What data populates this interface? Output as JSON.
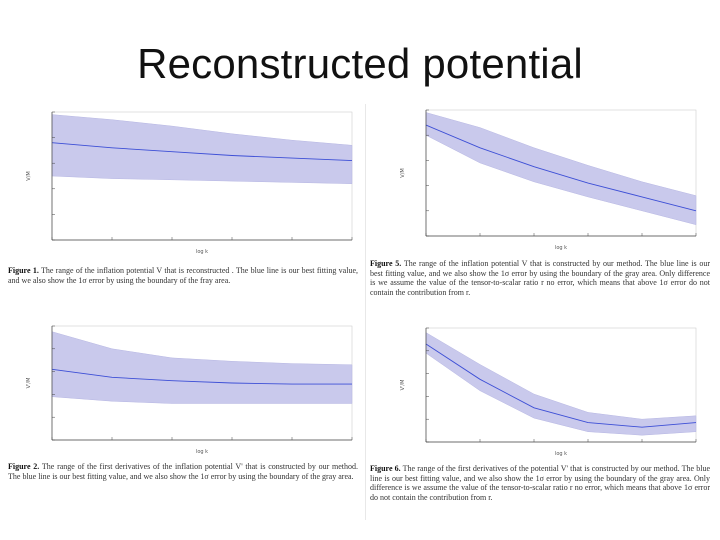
{
  "title": "Reconstructed potential",
  "colors": {
    "band": "#c9c9ec",
    "line": "#3d4fd6",
    "axis": "#444444",
    "grid": "#cfcfcf"
  },
  "chart_data": [
    {
      "type": "area",
      "xscale": "log",
      "ylim": [
        0,
        1
      ],
      "x": [
        1e-05,
        0.0001,
        0.001,
        0.01,
        0.1,
        1
      ],
      "center": [
        0.76,
        0.72,
        0.69,
        0.66,
        0.64,
        0.62
      ],
      "upper": [
        0.98,
        0.94,
        0.89,
        0.83,
        0.78,
        0.74
      ],
      "lower": [
        0.5,
        0.48,
        0.47,
        0.46,
        0.45,
        0.44
      ],
      "caption_label": "Figure 1.",
      "caption_text": "The range of the inflation potential V that is reconstructed . The blue line is our best fitting value, and we also show the 1σ error by using the boundary of the fray area.",
      "ylabel": "V/M",
      "xlabel": "log k"
    },
    {
      "type": "area",
      "xscale": "log",
      "ylim": [
        0,
        1
      ],
      "x": [
        1e-05,
        0.0001,
        0.001,
        0.01,
        0.1,
        1
      ],
      "center": [
        0.62,
        0.55,
        0.52,
        0.5,
        0.49,
        0.49
      ],
      "upper": [
        0.95,
        0.8,
        0.72,
        0.69,
        0.67,
        0.66
      ],
      "lower": [
        0.38,
        0.34,
        0.32,
        0.32,
        0.32,
        0.32
      ],
      "caption_label": "Figure 2.",
      "caption_text": "The range of the first derivatives of the inflation potential V' that is constructed by our method. The blue line is our best fitting value, and we also show the 1σ error by using the boundary of the gray area.",
      "ylabel": "V'/M",
      "xlabel": "log k"
    },
    {
      "type": "area",
      "xscale": "log",
      "ylim": [
        0,
        1
      ],
      "x": [
        1e-05,
        0.0001,
        0.001,
        0.01,
        0.1,
        1
      ],
      "center": [
        0.88,
        0.7,
        0.55,
        0.42,
        0.31,
        0.2
      ],
      "upper": [
        0.98,
        0.86,
        0.7,
        0.56,
        0.43,
        0.32
      ],
      "lower": [
        0.8,
        0.58,
        0.43,
        0.31,
        0.2,
        0.09
      ],
      "caption_label": "Figure 5.",
      "caption_text": "The range of the inflation potential V that is constructed by our method. The blue line is our best fitting value, and we also show the 1σ error by using the boundary of the gray area. Only difference is we assume the value of the tensor-to-scalar ratio r no error, which means that above 1σ error do not contain the contribution from r.",
      "ylabel": "V/M",
      "xlabel": "log k"
    },
    {
      "type": "area",
      "xscale": "log",
      "ylim": [
        0,
        1
      ],
      "x": [
        1e-05,
        0.0001,
        0.001,
        0.01,
        0.1,
        1
      ],
      "center": [
        0.86,
        0.55,
        0.3,
        0.17,
        0.13,
        0.17
      ],
      "upper": [
        0.96,
        0.68,
        0.42,
        0.26,
        0.2,
        0.23
      ],
      "lower": [
        0.78,
        0.45,
        0.21,
        0.09,
        0.06,
        0.09
      ],
      "caption_label": "Figure 6.",
      "caption_text": "The range of the first derivatives of the potential V' that is constructed by our method. The blue line is our best fitting value, and we also show the 1σ error by using the boundary of the gray area. Only difference is we assume the value of the tensor-to-scalar ratio r no error, which means that above 1σ error do not contain the contribution from r.",
      "ylabel": "V'/M",
      "xlabel": "log k"
    }
  ]
}
